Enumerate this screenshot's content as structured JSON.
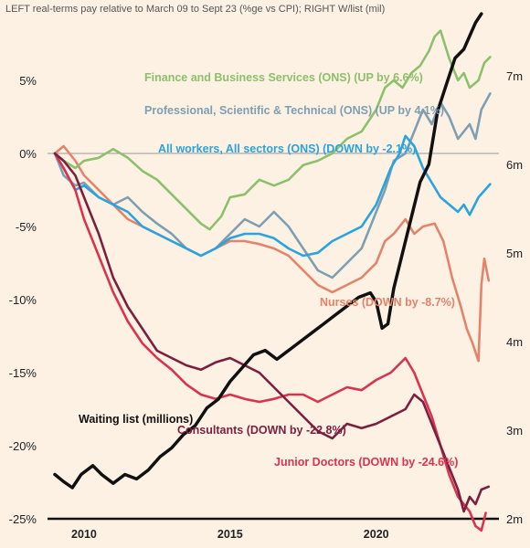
{
  "chart_data": {
    "type": "line",
    "title": "LEFT real-terms pay relative to March 09 to Sept 23 (%ge vs CPI); RIGHT W/list (mil)",
    "x_range": [
      2008.75,
      2024.2
    ],
    "x_ticks": [
      2010,
      2015,
      2020
    ],
    "y_left": {
      "range": [
        -25,
        10
      ],
      "ticks": [
        5,
        0,
        -5,
        -10,
        -15,
        -20,
        -25
      ],
      "tick_labels": [
        "5%",
        "0%",
        "-5%",
        "-10%",
        "-15%",
        "-20%",
        "-25%"
      ]
    },
    "y_right": {
      "range": [
        2,
        7.4
      ],
      "ticks": [
        7,
        6,
        5,
        4,
        3,
        2
      ],
      "tick_labels": [
        "7m",
        "6m",
        "5m",
        "4m",
        "3m",
        "2m"
      ]
    },
    "grid": false,
    "series": [
      {
        "name": "Finance and Business Services (ONS) (UP by 6.6%)",
        "axis": "left",
        "color": "#8cc06a",
        "points": [
          [
            2009.0,
            0
          ],
          [
            2009.3,
            -0.5
          ],
          [
            2009.7,
            -1.0
          ],
          [
            2010.0,
            -0.5
          ],
          [
            2010.5,
            -0.3
          ],
          [
            2011.0,
            0.3
          ],
          [
            2011.5,
            -0.3
          ],
          [
            2012.0,
            -1.2
          ],
          [
            2012.5,
            -1.8
          ],
          [
            2013.0,
            -2.8
          ],
          [
            2013.5,
            -3.8
          ],
          [
            2014.0,
            -4.8
          ],
          [
            2014.3,
            -5.2
          ],
          [
            2014.7,
            -4.3
          ],
          [
            2015.0,
            -3.0
          ],
          [
            2015.5,
            -2.8
          ],
          [
            2016.0,
            -1.8
          ],
          [
            2016.5,
            -2.2
          ],
          [
            2017.0,
            -1.8
          ],
          [
            2017.5,
            -0.8
          ],
          [
            2018.0,
            -0.5
          ],
          [
            2018.5,
            0
          ],
          [
            2019.0,
            1.0
          ],
          [
            2019.5,
            1.5
          ],
          [
            2020.0,
            3.0
          ],
          [
            2020.3,
            4.5
          ],
          [
            2020.6,
            5.0
          ],
          [
            2020.9,
            4.5
          ],
          [
            2021.2,
            5.5
          ],
          [
            2021.5,
            6.0
          ],
          [
            2021.8,
            7.0
          ],
          [
            2022.0,
            8.0
          ],
          [
            2022.2,
            8.4
          ],
          [
            2022.5,
            6.5
          ],
          [
            2022.8,
            5.0
          ],
          [
            2023.0,
            5.5
          ],
          [
            2023.2,
            4.5
          ],
          [
            2023.5,
            5.0
          ],
          [
            2023.7,
            6.2
          ],
          [
            2023.9,
            6.6
          ]
        ]
      },
      {
        "name": "Professional, Scientific & Technical (ONS) (UP by 4.1%)",
        "axis": "left",
        "color": "#7e9fb2",
        "points": [
          [
            2009.0,
            0
          ],
          [
            2009.3,
            -1.5
          ],
          [
            2009.7,
            -2.2
          ],
          [
            2010.0,
            -2.0
          ],
          [
            2010.5,
            -3.0
          ],
          [
            2011.0,
            -3.5
          ],
          [
            2011.5,
            -3.0
          ],
          [
            2012.0,
            -4.0
          ],
          [
            2012.5,
            -4.8
          ],
          [
            2013.0,
            -5.5
          ],
          [
            2013.5,
            -6.5
          ],
          [
            2014.0,
            -7.0
          ],
          [
            2014.5,
            -6.5
          ],
          [
            2015.0,
            -5.5
          ],
          [
            2015.5,
            -4.5
          ],
          [
            2016.0,
            -5.0
          ],
          [
            2016.5,
            -4.0
          ],
          [
            2017.0,
            -5.0
          ],
          [
            2017.5,
            -6.5
          ],
          [
            2018.0,
            -8.0
          ],
          [
            2018.5,
            -8.5
          ],
          [
            2019.0,
            -7.5
          ],
          [
            2019.5,
            -6.5
          ],
          [
            2020.0,
            -4.0
          ],
          [
            2020.3,
            -2.5
          ],
          [
            2020.6,
            -0.5
          ],
          [
            2021.0,
            0
          ],
          [
            2021.3,
            1.5
          ],
          [
            2021.6,
            3.0
          ],
          [
            2021.9,
            2.0
          ],
          [
            2022.2,
            3.5
          ],
          [
            2022.5,
            2.5
          ],
          [
            2022.8,
            1.0
          ],
          [
            2023.0,
            1.5
          ],
          [
            2023.2,
            2.0
          ],
          [
            2023.4,
            1.0
          ],
          [
            2023.6,
            3.0
          ],
          [
            2023.9,
            4.1
          ]
        ]
      },
      {
        "name": "All workers, All sectors (ONS) (DOWN by -2.1%)",
        "axis": "left",
        "color": "#2aa3de",
        "points": [
          [
            2009.0,
            0
          ],
          [
            2009.3,
            -1.0
          ],
          [
            2009.7,
            -2.5
          ],
          [
            2010.0,
            -2.2
          ],
          [
            2010.5,
            -3.0
          ],
          [
            2011.0,
            -3.5
          ],
          [
            2011.5,
            -4.0
          ],
          [
            2012.0,
            -5.0
          ],
          [
            2012.5,
            -5.5
          ],
          [
            2013.0,
            -6.0
          ],
          [
            2013.5,
            -6.5
          ],
          [
            2014.0,
            -7.0
          ],
          [
            2014.5,
            -6.5
          ],
          [
            2015.0,
            -5.8
          ],
          [
            2015.5,
            -5.5
          ],
          [
            2016.0,
            -5.5
          ],
          [
            2016.5,
            -5.8
          ],
          [
            2017.0,
            -6.5
          ],
          [
            2017.5,
            -7.0
          ],
          [
            2018.0,
            -6.8
          ],
          [
            2018.5,
            -6.0
          ],
          [
            2019.0,
            -5.5
          ],
          [
            2019.5,
            -5.0
          ],
          [
            2020.0,
            -3.5
          ],
          [
            2020.3,
            -2.0
          ],
          [
            2020.5,
            -1.0
          ],
          [
            2020.8,
            0
          ],
          [
            2021.0,
            1.2
          ],
          [
            2021.3,
            0.5
          ],
          [
            2021.6,
            -1.0
          ],
          [
            2021.9,
            -2.0
          ],
          [
            2022.2,
            -3.0
          ],
          [
            2022.5,
            -3.5
          ],
          [
            2022.8,
            -4.0
          ],
          [
            2023.0,
            -3.5
          ],
          [
            2023.2,
            -4.2
          ],
          [
            2023.5,
            -3.0
          ],
          [
            2023.9,
            -2.1
          ]
        ]
      },
      {
        "name": "Nurses (DOWN by -8.7%)",
        "axis": "left",
        "color": "#e3836a",
        "points": [
          [
            2009.0,
            0
          ],
          [
            2009.3,
            0.5
          ],
          [
            2009.7,
            -0.5
          ],
          [
            2010.0,
            -1.5
          ],
          [
            2010.5,
            -2.5
          ],
          [
            2011.0,
            -3.5
          ],
          [
            2011.5,
            -4.5
          ],
          [
            2012.0,
            -5.0
          ],
          [
            2012.5,
            -5.5
          ],
          [
            2013.0,
            -6.0
          ],
          [
            2013.5,
            -6.5
          ],
          [
            2014.0,
            -7.0
          ],
          [
            2014.5,
            -6.5
          ],
          [
            2015.0,
            -6.0
          ],
          [
            2015.5,
            -6.0
          ],
          [
            2016.0,
            -6.2
          ],
          [
            2016.5,
            -6.5
          ],
          [
            2017.0,
            -7.0
          ],
          [
            2017.5,
            -8.0
          ],
          [
            2018.0,
            -9.0
          ],
          [
            2018.5,
            -9.5
          ],
          [
            2019.0,
            -9.0
          ],
          [
            2019.5,
            -8.5
          ],
          [
            2020.0,
            -7.5
          ],
          [
            2020.3,
            -6.0
          ],
          [
            2020.6,
            -5.5
          ],
          [
            2021.0,
            -4.5
          ],
          [
            2021.3,
            -5.5
          ],
          [
            2021.6,
            -5.0
          ],
          [
            2022.0,
            -4.8
          ],
          [
            2022.3,
            -6.0
          ],
          [
            2022.6,
            -8.5
          ],
          [
            2022.9,
            -10.5
          ],
          [
            2023.1,
            -12.0
          ],
          [
            2023.3,
            -13.0
          ],
          [
            2023.5,
            -14.2
          ],
          [
            2023.6,
            -9.0
          ],
          [
            2023.7,
            -7.2
          ],
          [
            2023.85,
            -8.7
          ]
        ]
      },
      {
        "name": "Consultants (DOWN by -22.8%)",
        "axis": "left",
        "color": "#7a1f3e",
        "points": [
          [
            2009.0,
            0
          ],
          [
            2009.3,
            -0.5
          ],
          [
            2009.7,
            -1.5
          ],
          [
            2010.0,
            -3.0
          ],
          [
            2010.5,
            -5.5
          ],
          [
            2011.0,
            -8.5
          ],
          [
            2011.5,
            -10.5
          ],
          [
            2012.0,
            -12.0
          ],
          [
            2012.5,
            -13.5
          ],
          [
            2013.0,
            -14.0
          ],
          [
            2013.5,
            -14.5
          ],
          [
            2014.0,
            -14.8
          ],
          [
            2014.5,
            -14.3
          ],
          [
            2015.0,
            -14.0
          ],
          [
            2015.5,
            -14.5
          ],
          [
            2016.0,
            -15.0
          ],
          [
            2016.5,
            -16.0
          ],
          [
            2017.0,
            -17.0
          ],
          [
            2017.5,
            -18.0
          ],
          [
            2018.0,
            -19.0
          ],
          [
            2018.5,
            -19.5
          ],
          [
            2019.0,
            -18.5
          ],
          [
            2019.5,
            -18.8
          ],
          [
            2020.0,
            -18.5
          ],
          [
            2020.5,
            -18.0
          ],
          [
            2021.0,
            -17.5
          ],
          [
            2021.3,
            -16.5
          ],
          [
            2021.6,
            -17.0
          ],
          [
            2021.9,
            -18.5
          ],
          [
            2022.2,
            -20.0
          ],
          [
            2022.5,
            -21.5
          ],
          [
            2022.8,
            -23.0
          ],
          [
            2023.0,
            -24.5
          ],
          [
            2023.2,
            -23.5
          ],
          [
            2023.4,
            -24.0
          ],
          [
            2023.6,
            -23.0
          ],
          [
            2023.85,
            -22.8
          ]
        ]
      },
      {
        "name": "Junior Doctors (DOWN by -24.6%)",
        "axis": "left",
        "color": "#d9344f",
        "points": [
          [
            2009.0,
            0
          ],
          [
            2009.3,
            -1.0
          ],
          [
            2009.7,
            -2.5
          ],
          [
            2010.0,
            -4.5
          ],
          [
            2010.5,
            -7.0
          ],
          [
            2011.0,
            -9.5
          ],
          [
            2011.5,
            -11.5
          ],
          [
            2012.0,
            -13.0
          ],
          [
            2012.5,
            -14.0
          ],
          [
            2013.0,
            -14.8
          ],
          [
            2013.5,
            -15.8
          ],
          [
            2014.0,
            -16.5
          ],
          [
            2014.5,
            -16.8
          ],
          [
            2015.0,
            -16.5
          ],
          [
            2015.5,
            -16.8
          ],
          [
            2016.0,
            -17.0
          ],
          [
            2016.5,
            -16.8
          ],
          [
            2017.0,
            -16.5
          ],
          [
            2017.5,
            -16.5
          ],
          [
            2018.0,
            -17.0
          ],
          [
            2018.5,
            -16.5
          ],
          [
            2019.0,
            -16.0
          ],
          [
            2019.5,
            -16.2
          ],
          [
            2020.0,
            -15.5
          ],
          [
            2020.5,
            -15.0
          ],
          [
            2021.0,
            -14.0
          ],
          [
            2021.3,
            -15.0
          ],
          [
            2021.6,
            -16.5
          ],
          [
            2021.9,
            -18.0
          ],
          [
            2022.2,
            -20.0
          ],
          [
            2022.5,
            -22.0
          ],
          [
            2022.8,
            -23.5
          ],
          [
            2023.0,
            -24.0
          ],
          [
            2023.2,
            -24.5
          ],
          [
            2023.4,
            -25.5
          ],
          [
            2023.6,
            -25.8
          ],
          [
            2023.75,
            -24.6
          ]
        ]
      },
      {
        "name": "Waiting list (millions)",
        "axis": "right",
        "color": "#111111",
        "points": [
          [
            2009.0,
            2.5
          ],
          [
            2009.3,
            2.42
          ],
          [
            2009.6,
            2.35
          ],
          [
            2009.9,
            2.5
          ],
          [
            2010.3,
            2.6
          ],
          [
            2010.6,
            2.5
          ],
          [
            2011.0,
            2.4
          ],
          [
            2011.4,
            2.5
          ],
          [
            2011.8,
            2.45
          ],
          [
            2012.2,
            2.55
          ],
          [
            2012.6,
            2.7
          ],
          [
            2013.0,
            2.8
          ],
          [
            2013.4,
            2.95
          ],
          [
            2013.8,
            3.05
          ],
          [
            2014.2,
            3.25
          ],
          [
            2014.6,
            3.35
          ],
          [
            2015.0,
            3.55
          ],
          [
            2015.4,
            3.7
          ],
          [
            2015.8,
            3.85
          ],
          [
            2016.2,
            3.9
          ],
          [
            2016.6,
            3.8
          ],
          [
            2017.0,
            3.9
          ],
          [
            2017.4,
            4.0
          ],
          [
            2017.8,
            4.1
          ],
          [
            2018.2,
            4.2
          ],
          [
            2018.6,
            4.3
          ],
          [
            2019.0,
            4.4
          ],
          [
            2019.4,
            4.5
          ],
          [
            2019.8,
            4.55
          ],
          [
            2020.0,
            4.45
          ],
          [
            2020.2,
            4.15
          ],
          [
            2020.4,
            4.2
          ],
          [
            2020.6,
            4.6
          ],
          [
            2020.9,
            5.0
          ],
          [
            2021.2,
            5.4
          ],
          [
            2021.5,
            5.8
          ],
          [
            2021.8,
            6.0
          ],
          [
            2022.1,
            6.6
          ],
          [
            2022.4,
            6.9
          ],
          [
            2022.7,
            7.2
          ],
          [
            2023.0,
            7.3
          ],
          [
            2023.4,
            7.6
          ],
          [
            2023.6,
            7.7
          ]
        ]
      }
    ],
    "labels": {
      "finance": "Finance and Business Services (ONS) (UP by 6.6%)",
      "professional": "Professional, Scientific & Technical (ONS) (UP by 4.1%)",
      "all_workers": "All workers, All sectors (ONS) (DOWN by -2.1%)",
      "nurses": "Nurses (DOWN by -8.7%)",
      "waiting_list": "Waiting list (millions)",
      "consultants": "Consultants (DOWN by -22.8%)",
      "junior_doctors": "Junior Doctors (DOWN by -24.6%)"
    }
  }
}
